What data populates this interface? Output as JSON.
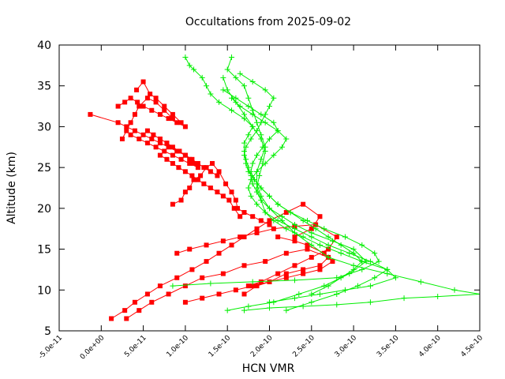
{
  "chart_data": {
    "type": "line",
    "title": "Occultations from 2025-09-02",
    "xlabel": "HCN VMR",
    "ylabel": "Altitude (km)",
    "xlim": [
      -5e-11,
      4.5e-10
    ],
    "ylim": [
      5,
      40
    ],
    "x_ticks": [
      "-5.0e-11",
      "0.0e+00",
      "5.0e-11",
      "1.0e-10",
      "1.5e-10",
      "2.0e-10",
      "2.5e-10",
      "3.0e-10",
      "3.5e-10",
      "4.0e-10",
      "4.5e-10"
    ],
    "x_tick_values": [
      -5e-11,
      0,
      5e-11,
      1e-10,
      1.5e-10,
      2e-10,
      2.5e-10,
      3e-10,
      3.5e-10,
      4e-10,
      4.5e-10
    ],
    "y_ticks": [
      "5",
      "10",
      "15",
      "20",
      "25",
      "30",
      "35",
      "40"
    ],
    "y_tick_values": [
      5,
      10,
      15,
      20,
      25,
      30,
      35,
      40
    ],
    "grid": false,
    "legend": "none",
    "series": [
      {
        "color": "#ff0000",
        "marker": "square",
        "profiles": [
          {
            "x": [
              1.2e-11,
              2.8e-11,
              4e-11,
              5.5e-11,
              7e-11,
              9e-11,
              1.08e-10,
              1.25e-10,
              1.4e-10,
              1.55e-10,
              1.7e-10,
              1.85e-10,
              2e-10,
              2.2e-10,
              2.4e-10,
              2.6e-10,
              2.5e-10,
              2.3e-10
            ],
            "y": [
              6.5,
              7.5,
              8.5,
              9.5,
              10.5,
              11.5,
              12.5,
              13.5,
              14.5,
              15.5,
              16.5,
              17.5,
              18.5,
              19.5,
              20.5,
              19.0,
              17.5,
              16.5
            ]
          },
          {
            "x": [
              3e-11,
              4.5e-11,
              6e-11,
              8e-11,
              1e-10,
              1.2e-10,
              1.45e-10,
              1.7e-10,
              1.95e-10,
              2.2e-10,
              2.45e-10,
              2.7e-10,
              2.6e-10,
              2.4e-10,
              2.2e-10,
              2e-10,
              1.85e-10,
              1.7e-10
            ],
            "y": [
              6.5,
              7.5,
              8.5,
              9.5,
              10.5,
              11.5,
              12.0,
              13.0,
              13.5,
              14.5,
              15.0,
              14.0,
              13.0,
              12.5,
              12.0,
              11.0,
              10.5,
              9.5
            ]
          },
          {
            "x": [
              9e-11,
              1.05e-10,
              1.25e-10,
              1.45e-10,
              1.65e-10,
              1.85e-10,
              2.05e-10,
              2.3e-10,
              2.55e-10,
              2.8e-10,
              2.7e-10,
              2.5e-10,
              2.3e-10,
              2.1e-10,
              1.9e-10,
              1.75e-10
            ],
            "y": [
              14.5,
              15.0,
              15.5,
              16.0,
              16.5,
              17.0,
              17.5,
              17.8,
              18.0,
              16.5,
              15.0,
              14.0,
              13.0,
              12.0,
              11.0,
              10.5
            ]
          },
          {
            "x": [
              1e-10,
              1.2e-10,
              1.4e-10,
              1.6e-10,
              1.8e-10,
              2e-10,
              2.2e-10,
              2.4e-10,
              2.6e-10,
              2.75e-10,
              2.65e-10,
              2.45e-10,
              2.3e-10,
              2.1e-10
            ],
            "y": [
              8.5,
              9.0,
              9.5,
              10.0,
              10.5,
              11.0,
              11.5,
              12.0,
              12.5,
              13.5,
              14.5,
              15.5,
              16.0,
              16.5
            ]
          },
          {
            "x": [
              8.5e-11,
              9.5e-11,
              1e-10,
              1.05e-10,
              1.1e-10,
              1.18e-10,
              1.25e-10,
              1.32e-10,
              1.4e-10,
              1.48e-10,
              1.55e-10,
              1.6e-10,
              1.62e-10,
              1.7e-10,
              1.8e-10,
              1.9e-10,
              2e-10
            ],
            "y": [
              20.5,
              21.0,
              22.0,
              22.5,
              23.5,
              24.0,
              25.0,
              25.5,
              24.5,
              23.0,
              22.0,
              21.0,
              20.0,
              19.5,
              19.0,
              18.5,
              18.0
            ]
          },
          {
            "x": [
              7e-11,
              7.8e-11,
              8.5e-11,
              9.2e-11,
              1e-10,
              1.08e-10,
              1.15e-10,
              1.22e-10,
              1.3e-10,
              1.38e-10,
              1.45e-10,
              1.52e-10,
              1.58e-10,
              1.65e-10
            ],
            "y": [
              26.5,
              26.0,
              25.5,
              25.0,
              24.5,
              24.0,
              23.5,
              23.0,
              22.5,
              22.0,
              21.5,
              21.0,
              20.0,
              19.0
            ]
          },
          {
            "x": [
              5.5e-11,
              6.2e-11,
              7e-11,
              7.8e-11,
              8.5e-11,
              9.3e-11,
              1e-10,
              1.08e-10,
              1.15e-10,
              1.22e-10,
              1.3e-10,
              1.38e-10
            ],
            "y": [
              29.5,
              29.0,
              28.5,
              28.0,
              27.5,
              27.0,
              26.5,
              26.0,
              25.5,
              25.0,
              24.5,
              24.0
            ]
          },
          {
            "x": [
              -1.3e-11,
              2e-11,
              3e-11,
              4e-11,
              5e-11,
              6e-11,
              7e-11,
              8e-11,
              9e-11,
              1e-10,
              1.05e-10,
              1.1e-10
            ],
            "y": [
              31.5,
              30.5,
              30.0,
              29.5,
              29.0,
              28.5,
              28.0,
              27.5,
              27.0,
              26.5,
              26.0,
              25.5
            ]
          },
          {
            "x": [
              2e-11,
              2.8e-11,
              3.5e-11,
              4.3e-11,
              5e-11,
              6e-11,
              7e-11,
              8e-11,
              9e-11,
              1e-10
            ],
            "y": [
              32.5,
              33.0,
              33.5,
              33.0,
              32.5,
              32.0,
              31.5,
              31.0,
              30.5,
              30.0
            ]
          },
          {
            "x": [
              2.5e-11,
              3e-11,
              3.5e-11,
              4e-11,
              4.5e-11,
              5.5e-11,
              6.5e-11,
              7.5e-11,
              8.5e-11
            ],
            "y": [
              28.5,
              29.5,
              30.5,
              31.5,
              32.5,
              33.5,
              33.0,
              32.0,
              31.0
            ]
          },
          {
            "x": [
              4.2e-11,
              5e-11,
              5.8e-11,
              6.5e-11,
              7.5e-11,
              8.5e-11,
              9.5e-11
            ],
            "y": [
              34.5,
              35.5,
              34.0,
              33.5,
              32.5,
              31.5,
              30.5
            ]
          },
          {
            "x": [
              3.5e-11,
              4.5e-11,
              5.5e-11,
              6.5e-11,
              7.5e-11,
              8.5e-11,
              9.5e-11,
              1.05e-10,
              1.15e-10
            ],
            "y": [
              29.0,
              28.5,
              28.0,
              27.5,
              27.0,
              26.5,
              26.0,
              25.5,
              25.0
            ]
          }
        ]
      },
      {
        "color": "#00ee00",
        "marker": "plus",
        "profiles": [
          {
            "x": [
              1.5e-10,
              1.75e-10,
              2.05e-10,
              2.35e-10,
              2.65e-10,
              2.95e-10,
              3.15e-10,
              3e-10,
              2.75e-10,
              2.5e-10,
              2.3e-10,
              2.15e-10,
              2e-10,
              1.9e-10,
              1.85e-10,
              1.8e-10,
              1.78e-10,
              1.75e-10,
              1.72e-10,
              1.7e-10,
              1.7e-10,
              1.75e-10,
              1.8e-10,
              1.7e-10,
              1.55e-10,
              1.4e-10,
              1.3e-10,
              1.25e-10,
              1.2e-10,
              1.1e-10,
              1.05e-10,
              1e-10
            ],
            "y": [
              7.5,
              8.0,
              8.5,
              9.5,
              10.5,
              12.0,
              13.5,
              15.0,
              16.0,
              17.0,
              18.0,
              19.0,
              20.0,
              21.0,
              22.0,
              23.0,
              24.0,
              25.0,
              26.0,
              27.0,
              28.0,
              29.0,
              30.0,
              31.0,
              32.0,
              33.0,
              34.0,
              35.0,
              36.0,
              37.0,
              37.5,
              38.5
            ]
          },
          {
            "x": [
              1.7e-10,
              2e-10,
              2.4e-10,
              2.8e-10,
              3.2e-10,
              3.6e-10,
              4e-10,
              4.5e-10,
              4.2e-10,
              3.8e-10,
              3.4e-10,
              3e-10,
              2.7e-10,
              2.5e-10,
              2.3e-10,
              2.15e-10,
              2e-10,
              1.9e-10,
              1.85e-10,
              1.85e-10,
              1.9e-10,
              1.95e-10,
              1.9e-10,
              1.85e-10,
              1.8e-10,
              1.75e-10,
              1.7e-10,
              1.6e-10,
              1.5e-10,
              1.55e-10
            ],
            "y": [
              7.5,
              7.8,
              8.0,
              8.2,
              8.5,
              9.0,
              9.2,
              9.5,
              10.0,
              11.0,
              12.0,
              13.0,
              14.0,
              15.5,
              17.0,
              18.5,
              20.0,
              21.5,
              23.0,
              24.5,
              26.0,
              27.5,
              29.0,
              30.5,
              32.0,
              33.5,
              35.0,
              36.0,
              37.0,
              38.5
            ]
          },
          {
            "x": [
              2e-10,
              2.3e-10,
              2.6e-10,
              2.9e-10,
              3.2e-10,
              3.5e-10,
              3.4e-10,
              3.1e-10,
              2.85e-10,
              2.6e-10,
              2.4e-10,
              2.2e-10,
              2.05e-10,
              1.95e-10,
              1.9e-10,
              1.85e-10,
              1.88e-10,
              1.92e-10,
              1.95e-10,
              1.9e-10,
              1.8e-10,
              1.7e-10,
              1.6e-10,
              1.5e-10,
              1.45e-10
            ],
            "y": [
              8.5,
              9.0,
              9.5,
              10.0,
              10.5,
              11.5,
              12.5,
              13.5,
              14.5,
              15.5,
              16.5,
              17.5,
              18.5,
              19.5,
              21.0,
              22.5,
              24.0,
              25.5,
              27.0,
              28.5,
              30.0,
              31.5,
              33.0,
              34.5,
              36.0
            ]
          },
          {
            "x": [
              8.5e-11,
              1.3e-10,
              1.8e-10,
              2.3e-10,
              2.8e-10,
              3.1e-10,
              3.3e-10,
              3.25e-10,
              3.1e-10,
              2.9e-10,
              2.65e-10,
              2.45e-10,
              2.25e-10,
              2.1e-10,
              2e-10,
              1.9e-10,
              1.82e-10,
              1.78e-10,
              1.8e-10,
              1.85e-10,
              1.92e-10,
              2e-10,
              2.1e-10,
              2.05e-10,
              1.9e-10,
              1.75e-10,
              1.6e-10,
              1.45e-10
            ],
            "y": [
              10.5,
              10.8,
              11.0,
              11.2,
              11.5,
              12.5,
              13.5,
              14.5,
              15.5,
              16.5,
              17.5,
              18.5,
              19.5,
              20.5,
              21.5,
              22.5,
              23.5,
              24.5,
              25.5,
              26.5,
              27.5,
              28.5,
              29.5,
              30.5,
              31.5,
              32.5,
              33.5,
              34.5
            ]
          },
          {
            "x": [
              2.2e-10,
              2.5e-10,
              2.8e-10,
              3.05e-10,
              3.25e-10,
              3.4e-10,
              3.2e-10,
              2.95e-10,
              2.7e-10,
              2.5e-10,
              2.3e-10,
              2.1e-10,
              1.95e-10,
              1.85e-10,
              1.78e-10,
              1.75e-10,
              1.78e-10,
              1.85e-10,
              1.95e-10,
              2.05e-10,
              2.15e-10,
              2.2e-10,
              2.1e-10,
              1.95e-10,
              1.8e-10,
              1.65e-10,
              1.55e-10
            ],
            "y": [
              7.5,
              8.5,
              9.5,
              10.5,
              11.5,
              12.5,
              13.5,
              14.5,
              15.5,
              16.5,
              17.5,
              18.5,
              19.5,
              20.5,
              21.5,
              22.5,
              23.5,
              24.5,
              25.5,
              26.5,
              27.5,
              28.5,
              29.5,
              30.5,
              31.5,
              32.5,
              33.5
            ]
          },
          {
            "x": [
              2.5e-10,
              2.7e-10,
              2.85e-10,
              3e-10,
              3.1e-10,
              3e-10,
              2.85e-10,
              2.7e-10,
              2.55e-10,
              2.4e-10,
              2.25e-10,
              2.1e-10,
              2e-10,
              1.9e-10,
              1.82e-10,
              1.75e-10,
              1.72e-10,
              1.7e-10,
              1.72e-10,
              1.78e-10,
              1.85e-10,
              1.9e-10,
              1.95e-10,
              2e-10,
              2.05e-10,
              1.95e-10,
              1.8e-10,
              1.65e-10
            ],
            "y": [
              9.5,
              10.5,
              11.5,
              12.5,
              13.5,
              14.5,
              15.5,
              16.5,
              17.5,
              18.5,
              19.5,
              20.5,
              21.5,
              22.5,
              23.5,
              24.5,
              25.5,
              26.5,
              27.5,
              28.5,
              29.5,
              30.5,
              31.5,
              32.5,
              33.5,
              34.5,
              35.5,
              36.5
            ]
          }
        ]
      }
    ]
  }
}
